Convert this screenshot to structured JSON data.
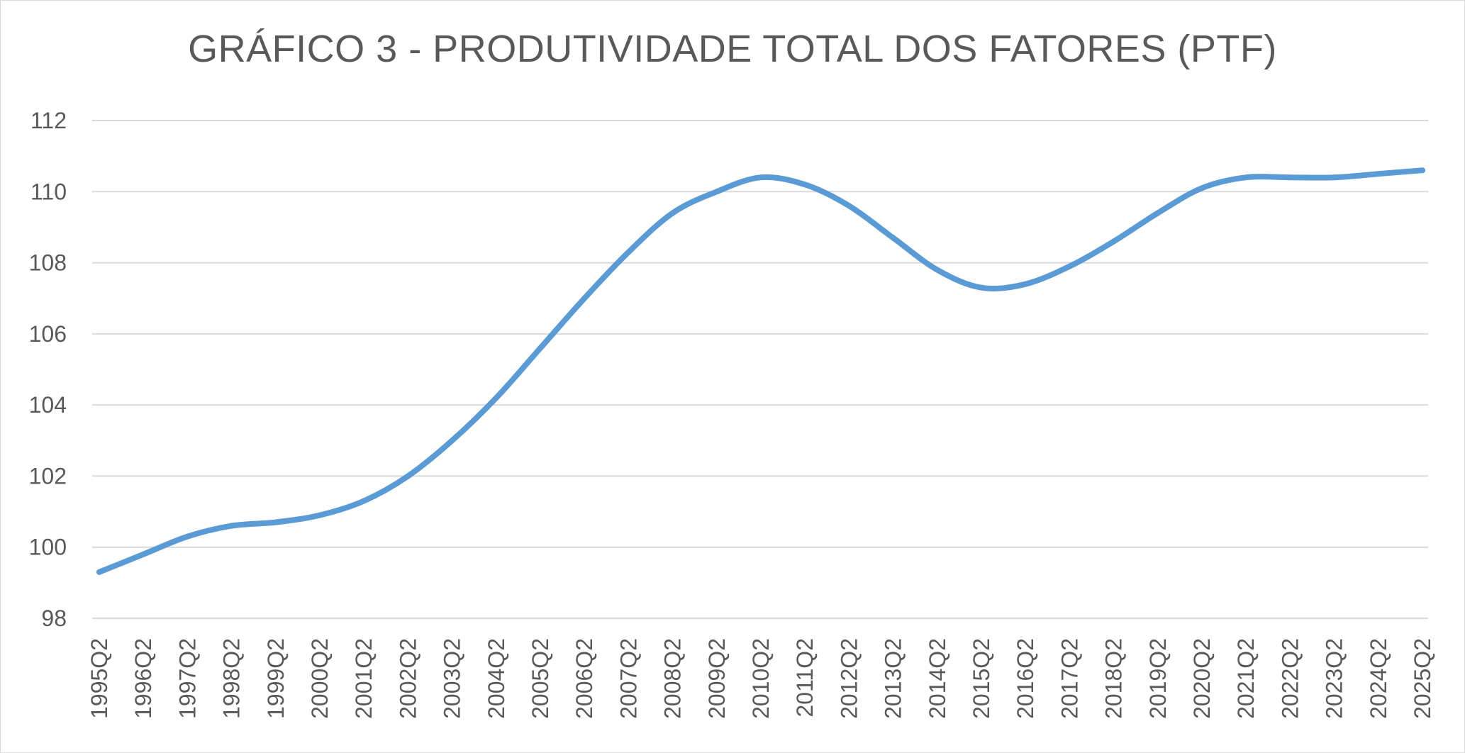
{
  "chart_data": {
    "type": "line",
    "title": "GRÁFICO 3 - PRODUTIVIDADE TOTAL DOS FATORES (PTF)",
    "xlabel": "",
    "ylabel": "",
    "ylim": [
      98,
      112
    ],
    "yticks": [
      "98",
      "100",
      "102",
      "104",
      "106",
      "108",
      "110",
      "112"
    ],
    "grid": true,
    "legend": "none",
    "line_color": "#5b9bd5",
    "categories": [
      "1995Q2",
      "1996Q2",
      "1997Q2",
      "1998Q2",
      "1999Q2",
      "2000Q2",
      "2001Q2",
      "2002Q2",
      "2003Q2",
      "2004Q2",
      "2005Q2",
      "2006Q2",
      "2007Q2",
      "2008Q2",
      "2009Q2",
      "2010Q2",
      "2011Q2",
      "2012Q2",
      "2013Q2",
      "2014Q2",
      "2015Q2",
      "2016Q2",
      "2017Q2",
      "2018Q2",
      "2019Q2",
      "2020Q2",
      "2021Q2",
      "2022Q2",
      "2023Q2",
      "2024Q2",
      "2025Q2"
    ],
    "series": [
      {
        "values": [
          99.3,
          99.8,
          100.3,
          100.6,
          100.7,
          100.9,
          101.3,
          102.0,
          103.0,
          104.2,
          105.6,
          107.0,
          108.3,
          109.4,
          110.0,
          110.4,
          110.2,
          109.6,
          108.7,
          107.8,
          107.3,
          107.4,
          107.9,
          108.6,
          109.4,
          110.1,
          110.4,
          110.4,
          110.4,
          110.5,
          110.6
        ]
      }
    ]
  }
}
